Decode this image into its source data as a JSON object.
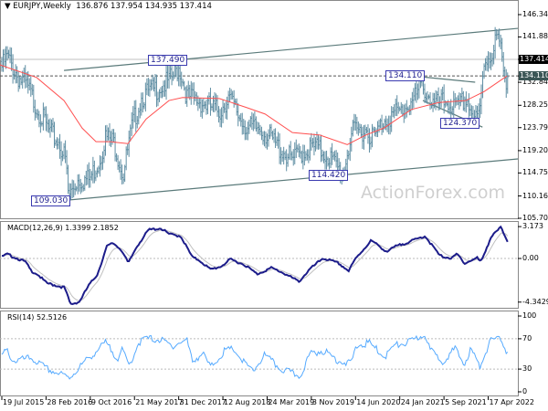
{
  "header": {
    "symbol": "EURJPY,Weekly",
    "ohlc": "136.876 137.954 134.935 137.414"
  },
  "watermark": "ActionForex.com",
  "colors": {
    "bars": "#5f8ea3",
    "moving_average": "#ff5050",
    "macd": "#1c1c8a",
    "signal": "#c0c0c0",
    "rsi": "#55aaff",
    "trendline": "#5a7a7a",
    "current_price_tag": "#000000",
    "level_tag": "#3b5656"
  },
  "x_axis": {
    "ticks": [
      {
        "label": "19 Jul 2015",
        "date": "2015-07-19"
      },
      {
        "label": "28 Feb 2016",
        "date": "2016-02-28"
      },
      {
        "label": "9 Oct 2016",
        "date": "2016-10-09"
      },
      {
        "label": "21 May 2017",
        "date": "2017-05-21"
      },
      {
        "label": "31 Dec 2017",
        "date": "2017-12-31"
      },
      {
        "label": "12 Aug 2018",
        "date": "2018-08-12"
      },
      {
        "label": "24 Mar 2019",
        "date": "2019-03-24"
      },
      {
        "label": "3 Nov 2019",
        "date": "2019-11-03"
      },
      {
        "label": "14 Jun 2020",
        "date": "2020-06-14"
      },
      {
        "label": "24 Jan 2021",
        "date": "2021-01-24"
      },
      {
        "label": "5 Sep 2021",
        "date": "2021-09-05"
      },
      {
        "label": "17 Apr 2022",
        "date": "2022-04-17"
      }
    ]
  },
  "chart_data": [
    {
      "type": "ohlc",
      "symbol": "EURJPY",
      "timeframe": "Weekly",
      "y_ticks": [
        "146.340",
        "141.885",
        "137.414",
        "134.110",
        "132.840",
        "128.250",
        "123.795",
        "119.205",
        "114.750",
        "110.160",
        "105.705"
      ],
      "ylim": [
        105.705,
        146.34
      ],
      "current_price": "137.414",
      "level": "134.110",
      "annotations": [
        {
          "label": "137.490",
          "date": "2018-01-02",
          "price": 137.49
        },
        {
          "label": "109.030",
          "date": "2016-06-21",
          "price": 109.03
        },
        {
          "label": "134.110",
          "date": "2021-05-17",
          "price": 134.11
        },
        {
          "label": "114.420",
          "date": "2020-04-09",
          "price": 114.42
        },
        {
          "label": "124.370",
          "date": "2022-03-05",
          "price": 124.37
        }
      ],
      "closes": [
        [
          "2015-07-19",
          137.0
        ],
        [
          "2015-08-16",
          138.9
        ],
        [
          "2015-10-10",
          135.0
        ],
        [
          "2015-11-26",
          132.9
        ],
        [
          "2016-01-11",
          129.0
        ],
        [
          "2016-03-20",
          123.7
        ],
        [
          "2016-05-05",
          121.9
        ],
        [
          "2016-06-07",
          118.3
        ],
        [
          "2016-06-21",
          111.0
        ],
        [
          "2016-08-06",
          114.6
        ],
        [
          "2016-10-05",
          114.5
        ],
        [
          "2016-11-30",
          119.0
        ],
        [
          "2016-12-23",
          123.0
        ],
        [
          "2017-02-07",
          121.9
        ],
        [
          "2017-03-25",
          115.5
        ],
        [
          "2017-05-11",
          125.5
        ],
        [
          "2017-06-26",
          131.0
        ],
        [
          "2017-08-11",
          132.0
        ],
        [
          "2017-09-26",
          133.0
        ],
        [
          "2017-11-12",
          134.0
        ],
        [
          "2018-01-02",
          137.0
        ],
        [
          "2018-02-12",
          131.0
        ],
        [
          "2018-04-23",
          130.0
        ],
        [
          "2018-07-25",
          128.0
        ],
        [
          "2018-09-09",
          131.0
        ],
        [
          "2018-11-04",
          127.0
        ],
        [
          "2018-12-19",
          124.6
        ],
        [
          "2019-02-17",
          124.8
        ],
        [
          "2019-04-28",
          121.9
        ],
        [
          "2019-07-30",
          118.3
        ],
        [
          "2019-09-14",
          120.1
        ],
        [
          "2019-11-22",
          121.0
        ],
        [
          "2020-01-30",
          119.2
        ],
        [
          "2020-04-09",
          115.5
        ],
        [
          "2020-05-25",
          123.7
        ],
        [
          "2020-08-04",
          124.6
        ],
        [
          "2020-09-19",
          122.8
        ],
        [
          "2020-11-04",
          126.5
        ],
        [
          "2021-02-05",
          128.3
        ],
        [
          "2021-04-15",
          131.0
        ],
        [
          "2021-05-17",
          133.6
        ],
        [
          "2021-07-17",
          129.2
        ],
        [
          "2021-09-24",
          130.1
        ],
        [
          "2021-11-09",
          128.3
        ],
        [
          "2021-12-26",
          131.0
        ],
        [
          "2022-02-10",
          126.0
        ],
        [
          "2022-03-05",
          127.5
        ],
        [
          "2022-03-28",
          138.3
        ],
        [
          "2022-05-13",
          140.1
        ],
        [
          "2022-06-01",
          143.5
        ],
        [
          "2022-06-19",
          140.0
        ],
        [
          "2022-07-03",
          136.0
        ],
        [
          "2022-07-17",
          134.5
        ],
        [
          "2022-07-31",
          137.414
        ]
      ],
      "moving_average": [
        [
          "2015-07-10",
          136.3
        ],
        [
          "2016-01-11",
          133.8
        ],
        [
          "2016-05-29",
          129.2
        ],
        [
          "2016-08-29",
          123.7
        ],
        [
          "2016-11-07",
          121.0
        ],
        [
          "2017-01-15",
          121.0
        ],
        [
          "2017-04-18",
          120.6
        ],
        [
          "2017-07-19",
          125.5
        ],
        [
          "2017-11-12",
          129.2
        ],
        [
          "2018-01-20",
          129.8
        ],
        [
          "2018-07-25",
          129.6
        ],
        [
          "2018-12-10",
          127.8
        ],
        [
          "2019-03-14",
          126.5
        ],
        [
          "2019-07-30",
          122.8
        ],
        [
          "2019-12-16",
          122.3
        ],
        [
          "2020-05-03",
          120.4
        ],
        [
          "2020-08-04",
          122.3
        ],
        [
          "2020-11-04",
          123.7
        ],
        [
          "2021-03-23",
          127.4
        ],
        [
          "2021-08-09",
          128.8
        ],
        [
          "2021-12-26",
          129.2
        ],
        [
          "2022-03-28",
          131.0
        ],
        [
          "2022-07-21",
          134.1
        ]
      ],
      "trendlines": [
        {
          "from": [
            "2016-05-29",
            135.2
          ],
          "to": [
            "2022-09-15",
            143.6
          ],
          "style": "solid"
        },
        {
          "from": [
            "2016-06-21",
            109.35
          ],
          "to": [
            "2022-09-15",
            117.55
          ],
          "style": "solid"
        },
        {
          "from": [
            "2021-05-07",
            133.95
          ],
          "to": [
            "2022-02-10",
            132.85
          ],
          "style": "solid"
        },
        {
          "from": [
            "2021-05-21",
            129.2
          ],
          "to": [
            "2022-03-19",
            123.9
          ],
          "style": "solid"
        }
      ]
    },
    {
      "type": "line",
      "title": "MACD(12,26,9) 1.3399 2.1852",
      "y_ticks": [
        "3.173",
        "0.00",
        "-4.3429"
      ],
      "ylim": [
        -4.3429,
        3.173
      ],
      "macd": [
        [
          "2015-07-19",
          0.18
        ],
        [
          "2015-08-15",
          0.42
        ],
        [
          "2015-11-15",
          -0.33
        ],
        [
          "2015-12-15",
          -1.24
        ],
        [
          "2016-01-15",
          -1.55
        ],
        [
          "2016-03-01",
          -2.45
        ],
        [
          "2016-06-01",
          -2.9
        ],
        [
          "2016-07-01",
          -4.57
        ],
        [
          "2016-08-15",
          -4.3
        ],
        [
          "2016-10-01",
          -2.7
        ],
        [
          "2016-11-15",
          -1.55
        ],
        [
          "2017-01-01",
          1.18
        ],
        [
          "2017-02-01",
          1.55
        ],
        [
          "2017-03-15",
          0.88
        ],
        [
          "2017-04-20",
          -0.48
        ],
        [
          "2017-06-01",
          1.18
        ],
        [
          "2017-08-01",
          2.85
        ],
        [
          "2017-10-01",
          3.0
        ],
        [
          "2017-11-15",
          2.4
        ],
        [
          "2018-01-10",
          2.24
        ],
        [
          "2018-03-10",
          0.12
        ],
        [
          "2018-04-15",
          -0.18
        ],
        [
          "2018-06-10",
          -1.1
        ],
        [
          "2018-08-01",
          -0.8
        ],
        [
          "2018-09-20",
          -0.09
        ],
        [
          "2018-12-01",
          -0.64
        ],
        [
          "2019-02-01",
          -1.55
        ],
        [
          "2019-04-15",
          -0.94
        ],
        [
          "2019-06-10",
          -1.4
        ],
        [
          "2019-09-01",
          -2.3
        ],
        [
          "2019-10-25",
          -1.1
        ],
        [
          "2020-01-01",
          0.03
        ],
        [
          "2020-03-20",
          -0.48
        ],
        [
          "2020-05-10",
          -1.24
        ],
        [
          "2020-06-15",
          0.0
        ],
        [
          "2020-09-01",
          1.79
        ],
        [
          "2020-11-20",
          0.67
        ],
        [
          "2021-01-01",
          1.18
        ],
        [
          "2021-04-01",
          1.79
        ],
        [
          "2021-06-01",
          2.24
        ],
        [
          "2021-08-15",
          0.27
        ],
        [
          "2021-10-15",
          0.0
        ],
        [
          "2021-11-10",
          0.45
        ],
        [
          "2021-12-20",
          -0.48
        ],
        [
          "2022-02-20",
          0.06
        ],
        [
          "2022-03-10",
          -0.36
        ],
        [
          "2022-05-01",
          2.1
        ],
        [
          "2022-06-19",
          3.1
        ],
        [
          "2022-07-31",
          1.48
        ]
      ]
    },
    {
      "type": "line",
      "title": "RSI(14) 52.5126",
      "y_ticks": [
        "100",
        "70",
        "30",
        "0"
      ],
      "ylim": [
        0,
        100
      ],
      "levels": [
        70,
        30
      ],
      "rsi": [
        [
          "2015-07-19",
          51
        ],
        [
          "2015-08-15",
          57
        ],
        [
          "2015-09-15",
          43
        ],
        [
          "2015-12-15",
          47
        ],
        [
          "2016-03-01",
          33
        ],
        [
          "2016-06-25",
          21
        ],
        [
          "2016-09-15",
          43
        ],
        [
          "2016-12-25",
          67
        ],
        [
          "2017-02-25",
          47
        ],
        [
          "2017-03-20",
          57
        ],
        [
          "2017-04-25",
          37
        ],
        [
          "2017-06-10",
          67
        ],
        [
          "2017-07-15",
          73
        ],
        [
          "2017-10-01",
          71
        ],
        [
          "2017-11-25",
          63
        ],
        [
          "2018-02-10",
          71
        ],
        [
          "2018-03-10",
          43
        ],
        [
          "2018-05-01",
          53
        ],
        [
          "2018-06-10",
          35
        ],
        [
          "2018-08-20",
          56
        ],
        [
          "2018-10-05",
          59
        ],
        [
          "2018-11-20",
          43
        ],
        [
          "2019-01-10",
          29
        ],
        [
          "2019-03-10",
          51
        ],
        [
          "2019-05-30",
          33
        ],
        [
          "2019-09-05",
          23
        ],
        [
          "2019-10-30",
          53
        ],
        [
          "2020-01-01",
          57
        ],
        [
          "2020-03-10",
          45
        ],
        [
          "2020-05-20",
          39
        ],
        [
          "2020-06-20",
          63
        ],
        [
          "2020-08-20",
          67
        ],
        [
          "2020-11-10",
          49
        ],
        [
          "2020-12-25",
          63
        ],
        [
          "2021-03-25",
          69
        ],
        [
          "2021-06-01",
          79
        ],
        [
          "2021-06-28",
          57
        ],
        [
          "2021-08-28",
          43
        ],
        [
          "2021-11-01",
          59
        ],
        [
          "2021-12-15",
          39
        ],
        [
          "2022-01-20",
          59
        ],
        [
          "2022-03-05",
          35
        ],
        [
          "2022-04-25",
          69
        ],
        [
          "2022-06-25",
          72
        ],
        [
          "2022-07-25",
          51
        ],
        [
          "2022-07-31",
          52.5
        ]
      ]
    }
  ]
}
